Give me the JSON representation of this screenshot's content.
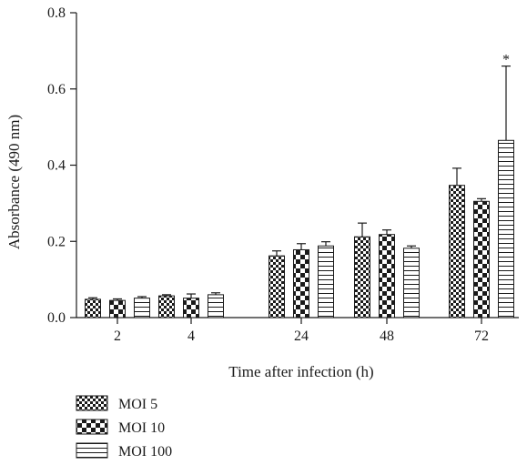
{
  "chart_data": {
    "type": "bar",
    "categories": [
      "2",
      "4",
      "24",
      "48",
      "72"
    ],
    "series": [
      {
        "name": "MOI 5",
        "pattern": "dense-checker",
        "values": [
          0.048,
          0.057,
          0.162,
          0.212,
          0.347
        ],
        "errors": [
          0.004,
          0.003,
          0.013,
          0.036,
          0.045
        ]
      },
      {
        "name": "MOI 10",
        "pattern": "large-checker",
        "values": [
          0.045,
          0.051,
          0.178,
          0.218,
          0.305
        ],
        "errors": [
          0.004,
          0.011,
          0.016,
          0.012,
          0.007
        ]
      },
      {
        "name": "MOI 100",
        "pattern": "horizontal-lines",
        "values": [
          0.051,
          0.06,
          0.188,
          0.182,
          0.465
        ],
        "errors": [
          0.004,
          0.005,
          0.011,
          0.006,
          0.195
        ]
      }
    ],
    "annotations": [
      {
        "category": "72",
        "series": "MOI 100",
        "text": "*"
      }
    ],
    "xlabel": "Time after infection (h)",
    "ylabel": "Absorbance (490 nm)",
    "ylim": [
      0,
      0.8
    ],
    "yticks": [
      "0.0",
      "0.2",
      "0.4",
      "0.6",
      "0.8"
    ],
    "grid": false,
    "legend_position": "bottom-left"
  },
  "colors": {
    "ink": "#1a1a1a",
    "background": "#ffffff"
  }
}
